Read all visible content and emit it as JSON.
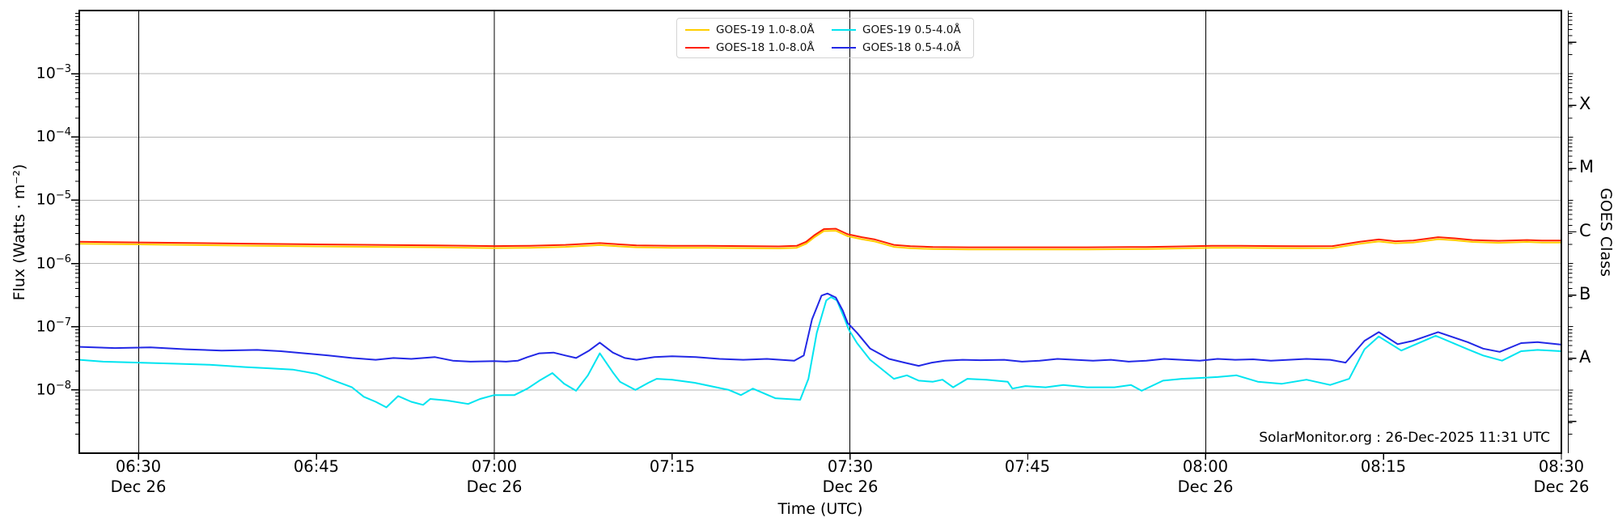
{
  "watermark": "SolarMonitor.org : 26-Dec-2025 11:31 UTC",
  "chart_data": {
    "type": "line",
    "title": "",
    "xlabel": "Time (UTC)",
    "ylabel": "Flux (Watts · m⁻²)",
    "ylabel_right": "GOES Class",
    "x_unit": "minutes after 06:00 UTC on Dec 26",
    "xlim_minutes": [
      25,
      150
    ],
    "ylim": [
      1e-09,
      0.01
    ],
    "grid": {
      "horizontal_decade_gridlines": true,
      "gridline_color": "#b6b6b6"
    },
    "y_tick_exponents": [
      -3,
      -4,
      -5,
      -6,
      -7,
      -8
    ],
    "x_ticks": [
      {
        "minutes": 30,
        "label": "06:30",
        "date": "Dec 26",
        "black_line": true
      },
      {
        "minutes": 45,
        "label": "06:45",
        "date": "",
        "black_line": false
      },
      {
        "minutes": 60,
        "label": "07:00",
        "date": "Dec 26",
        "black_line": true
      },
      {
        "minutes": 75,
        "label": "07:15",
        "date": "",
        "black_line": false
      },
      {
        "minutes": 90,
        "label": "07:30",
        "date": "Dec 26",
        "black_line": true
      },
      {
        "minutes": 105,
        "label": "07:45",
        "date": "",
        "black_line": false
      },
      {
        "minutes": 120,
        "label": "08:00",
        "date": "Dec 26",
        "black_line": true
      },
      {
        "minutes": 135,
        "label": "08:15",
        "date": "",
        "black_line": false
      },
      {
        "minutes": 150,
        "label": "08:30",
        "date": "Dec 26",
        "black_line": false
      }
    ],
    "goes_classes": [
      {
        "label": "X",
        "exponent": -3.5
      },
      {
        "label": "M",
        "exponent": -4.5
      },
      {
        "label": "C",
        "exponent": -5.5
      },
      {
        "label": "B",
        "exponent": -6.5
      },
      {
        "label": "A",
        "exponent": -7.5
      }
    ],
    "legend_position": "top center",
    "series": [
      {
        "name": "GOES-19 1.0-8.0Å",
        "color": "#ffce00",
        "points": [
          [
            25,
            2.05e-06
          ],
          [
            30,
            2e-06
          ],
          [
            35,
            1.95e-06
          ],
          [
            40,
            1.9e-06
          ],
          [
            45,
            1.86e-06
          ],
          [
            50,
            1.83e-06
          ],
          [
            55,
            1.8e-06
          ],
          [
            58,
            1.77e-06
          ],
          [
            60,
            1.75e-06
          ],
          [
            63,
            1.77e-06
          ],
          [
            66,
            1.83e-06
          ],
          [
            68.9,
            1.95e-06
          ],
          [
            70.6,
            1.86e-06
          ],
          [
            72,
            1.8e-06
          ],
          [
            75,
            1.77e-06
          ],
          [
            78,
            1.77e-06
          ],
          [
            81,
            1.75e-06
          ],
          [
            84,
            1.73e-06
          ],
          [
            85.5,
            1.77e-06
          ],
          [
            86.3,
            2.05e-06
          ],
          [
            87,
            2.6e-06
          ],
          [
            87.8,
            3.26e-06
          ],
          [
            88.8,
            3.3e-06
          ],
          [
            89.8,
            2.7e-06
          ],
          [
            91,
            2.42e-06
          ],
          [
            92.1,
            2.23e-06
          ],
          [
            93.7,
            1.83e-06
          ],
          [
            95.1,
            1.74e-06
          ],
          [
            97,
            1.69e-06
          ],
          [
            100,
            1.67e-06
          ],
          [
            105,
            1.67e-06
          ],
          [
            110,
            1.67e-06
          ],
          [
            115,
            1.69e-06
          ],
          [
            118,
            1.73e-06
          ],
          [
            120.5,
            1.77e-06
          ],
          [
            123,
            1.77e-06
          ],
          [
            126,
            1.75e-06
          ],
          [
            128,
            1.74e-06
          ],
          [
            130.7,
            1.75e-06
          ],
          [
            133,
            2.05e-06
          ],
          [
            134.6,
            2.23e-06
          ],
          [
            136,
            2.09e-06
          ],
          [
            137.5,
            2.14e-06
          ],
          [
            139.6,
            2.42e-06
          ],
          [
            141,
            2.33e-06
          ],
          [
            142.5,
            2.19e-06
          ],
          [
            144.7,
            2.12e-06
          ],
          [
            147.1,
            2.19e-06
          ],
          [
            148.4,
            2.14e-06
          ],
          [
            150,
            2.14e-06
          ]
        ]
      },
      {
        "name": "GOES-18 1.0-8.0Å",
        "color": "#ff2000",
        "points": [
          [
            25,
            2.2e-06
          ],
          [
            30,
            2.15e-06
          ],
          [
            35,
            2.1e-06
          ],
          [
            40,
            2.05e-06
          ],
          [
            45,
            2e-06
          ],
          [
            50,
            1.97e-06
          ],
          [
            55,
            1.93e-06
          ],
          [
            58,
            1.9e-06
          ],
          [
            60,
            1.88e-06
          ],
          [
            63,
            1.9e-06
          ],
          [
            66,
            1.97e-06
          ],
          [
            68.9,
            2.1e-06
          ],
          [
            70.6,
            2e-06
          ],
          [
            72,
            1.93e-06
          ],
          [
            75,
            1.9e-06
          ],
          [
            78,
            1.9e-06
          ],
          [
            81,
            1.88e-06
          ],
          [
            84,
            1.86e-06
          ],
          [
            85.5,
            1.9e-06
          ],
          [
            86.3,
            2.2e-06
          ],
          [
            87,
            2.8e-06
          ],
          [
            87.8,
            3.5e-06
          ],
          [
            88.8,
            3.55e-06
          ],
          [
            89.8,
            2.9e-06
          ],
          [
            91,
            2.6e-06
          ],
          [
            92.1,
            2.4e-06
          ],
          [
            93.7,
            1.97e-06
          ],
          [
            95.1,
            1.87e-06
          ],
          [
            97,
            1.82e-06
          ],
          [
            100,
            1.8e-06
          ],
          [
            105,
            1.8e-06
          ],
          [
            110,
            1.8e-06
          ],
          [
            115,
            1.82e-06
          ],
          [
            118,
            1.86e-06
          ],
          [
            120.5,
            1.9e-06
          ],
          [
            123,
            1.9e-06
          ],
          [
            126,
            1.88e-06
          ],
          [
            128,
            1.87e-06
          ],
          [
            130.7,
            1.88e-06
          ],
          [
            133,
            2.2e-06
          ],
          [
            134.6,
            2.4e-06
          ],
          [
            136,
            2.25e-06
          ],
          [
            137.5,
            2.3e-06
          ],
          [
            139.6,
            2.6e-06
          ],
          [
            141,
            2.5e-06
          ],
          [
            142.5,
            2.35e-06
          ],
          [
            144.7,
            2.28e-06
          ],
          [
            147.1,
            2.35e-06
          ],
          [
            148.4,
            2.3e-06
          ],
          [
            150,
            2.3e-06
          ]
        ]
      },
      {
        "name": "GOES-19 0.5-4.0Å",
        "color": "#00e4f0",
        "points": [
          [
            25,
            3e-08
          ],
          [
            27,
            2.8e-08
          ],
          [
            30,
            2.7e-08
          ],
          [
            33,
            2.6e-08
          ],
          [
            36,
            2.5e-08
          ],
          [
            39,
            2.3e-08
          ],
          [
            41,
            2.2e-08
          ],
          [
            43,
            2.1e-08
          ],
          [
            45,
            1.8e-08
          ],
          [
            46.5,
            1.4e-08
          ],
          [
            48,
            1.1e-08
          ],
          [
            49,
            7.8e-09
          ],
          [
            50,
            6.5e-09
          ],
          [
            50.9,
            5.3e-09
          ],
          [
            51.9,
            8e-09
          ],
          [
            53,
            6.5e-09
          ],
          [
            54,
            5.8e-09
          ],
          [
            54.6,
            7.2e-09
          ],
          [
            56,
            6.8e-09
          ],
          [
            57.8,
            6e-09
          ],
          [
            58.8,
            7.2e-09
          ],
          [
            60,
            8.3e-09
          ],
          [
            61.7,
            8.3e-09
          ],
          [
            62.8,
            1.05e-08
          ],
          [
            63.8,
            1.4e-08
          ],
          [
            64.9,
            1.85e-08
          ],
          [
            65.9,
            1.25e-08
          ],
          [
            66.9,
            9.7e-09
          ],
          [
            67.9,
            1.7e-08
          ],
          [
            68.9,
            3.8e-08
          ],
          [
            70,
            1.9e-08
          ],
          [
            70.6,
            1.35e-08
          ],
          [
            71.9,
            1e-08
          ],
          [
            73,
            1.3e-08
          ],
          [
            73.7,
            1.5e-08
          ],
          [
            75,
            1.45e-08
          ],
          [
            76.9,
            1.3e-08
          ],
          [
            79.8,
            1e-08
          ],
          [
            80.8,
            8.3e-09
          ],
          [
            81.8,
            1.05e-08
          ],
          [
            83.7,
            7.4e-09
          ],
          [
            85.8,
            7e-09
          ],
          [
            86.5,
            1.5e-08
          ],
          [
            87.2,
            8e-08
          ],
          [
            88,
            2.6e-07
          ],
          [
            88.4,
            2.95e-07
          ],
          [
            88.9,
            2.6e-07
          ],
          [
            89.5,
            1.4e-07
          ],
          [
            89.9,
            9e-08
          ],
          [
            90.6,
            5.5e-08
          ],
          [
            91.7,
            3e-08
          ],
          [
            93.7,
            1.5e-08
          ],
          [
            94.8,
            1.7e-08
          ],
          [
            95.8,
            1.4e-08
          ],
          [
            97,
            1.35e-08
          ],
          [
            97.8,
            1.45e-08
          ],
          [
            98.7,
            1.1e-08
          ],
          [
            99.9,
            1.5e-08
          ],
          [
            101.5,
            1.45e-08
          ],
          [
            103.3,
            1.35e-08
          ],
          [
            103.7,
            1.05e-08
          ],
          [
            104.8,
            1.15e-08
          ],
          [
            106.5,
            1.1e-08
          ],
          [
            108,
            1.2e-08
          ],
          [
            110,
            1.1e-08
          ],
          [
            112.3,
            1.1e-08
          ],
          [
            113.7,
            1.2e-08
          ],
          [
            114.6,
            9.7e-09
          ],
          [
            116.4,
            1.4e-08
          ],
          [
            118,
            1.5e-08
          ],
          [
            119.6,
            1.55e-08
          ],
          [
            121,
            1.6e-08
          ],
          [
            122.6,
            1.7e-08
          ],
          [
            124.4,
            1.35e-08
          ],
          [
            126.4,
            1.25e-08
          ],
          [
            128.5,
            1.45e-08
          ],
          [
            130.5,
            1.2e-08
          ],
          [
            132.1,
            1.5e-08
          ],
          [
            133.4,
            4.4e-08
          ],
          [
            134.6,
            7e-08
          ],
          [
            136.5,
            4.2e-08
          ],
          [
            139.4,
            7.2e-08
          ],
          [
            142.1,
            4.4e-08
          ],
          [
            143.4,
            3.5e-08
          ],
          [
            145,
            2.9e-08
          ],
          [
            146.6,
            4.1e-08
          ],
          [
            148,
            4.3e-08
          ],
          [
            150,
            4.1e-08
          ]
        ]
      },
      {
        "name": "GOES-18 0.5-4.0Å",
        "color": "#2228e6",
        "points": [
          [
            25,
            4.8e-08
          ],
          [
            28,
            4.6e-08
          ],
          [
            31,
            4.7e-08
          ],
          [
            34,
            4.4e-08
          ],
          [
            37,
            4.2e-08
          ],
          [
            40,
            4.3e-08
          ],
          [
            42,
            4.1e-08
          ],
          [
            44,
            3.8e-08
          ],
          [
            46,
            3.5e-08
          ],
          [
            48,
            3.2e-08
          ],
          [
            50,
            3e-08
          ],
          [
            51.5,
            3.2e-08
          ],
          [
            53,
            3.1e-08
          ],
          [
            55,
            3.3e-08
          ],
          [
            56.5,
            2.9e-08
          ],
          [
            58,
            2.8e-08
          ],
          [
            60,
            2.85e-08
          ],
          [
            61,
            2.8e-08
          ],
          [
            62,
            2.9e-08
          ],
          [
            62.8,
            3.3e-08
          ],
          [
            63.8,
            3.8e-08
          ],
          [
            65,
            3.9e-08
          ],
          [
            66,
            3.5e-08
          ],
          [
            66.9,
            3.2e-08
          ],
          [
            68,
            4.2e-08
          ],
          [
            68.9,
            5.6e-08
          ],
          [
            70,
            3.9e-08
          ],
          [
            71,
            3.2e-08
          ],
          [
            72,
            3e-08
          ],
          [
            73.5,
            3.3e-08
          ],
          [
            75,
            3.4e-08
          ],
          [
            77,
            3.3e-08
          ],
          [
            79,
            3.1e-08
          ],
          [
            81,
            3e-08
          ],
          [
            83,
            3.1e-08
          ],
          [
            85.3,
            2.9e-08
          ],
          [
            86.1,
            3.5e-08
          ],
          [
            86.8,
            1.3e-07
          ],
          [
            87.6,
            3.1e-07
          ],
          [
            88.1,
            3.35e-07
          ],
          [
            88.8,
            2.9e-07
          ],
          [
            89.4,
            1.8e-07
          ],
          [
            89.8,
            1.15e-07
          ],
          [
            90.6,
            8e-08
          ],
          [
            91.7,
            4.5e-08
          ],
          [
            93.3,
            3.1e-08
          ],
          [
            94.6,
            2.7e-08
          ],
          [
            95.8,
            2.4e-08
          ],
          [
            96.9,
            2.7e-08
          ],
          [
            98,
            2.9e-08
          ],
          [
            99.5,
            3e-08
          ],
          [
            101,
            2.95e-08
          ],
          [
            103,
            3e-08
          ],
          [
            104.5,
            2.8e-08
          ],
          [
            106,
            2.9e-08
          ],
          [
            107.5,
            3.1e-08
          ],
          [
            109,
            3e-08
          ],
          [
            110.5,
            2.9e-08
          ],
          [
            112,
            3e-08
          ],
          [
            113.5,
            2.8e-08
          ],
          [
            115,
            2.9e-08
          ],
          [
            116.5,
            3.1e-08
          ],
          [
            118,
            3e-08
          ],
          [
            119.5,
            2.9e-08
          ],
          [
            121,
            3.1e-08
          ],
          [
            122.5,
            3e-08
          ],
          [
            124,
            3.05e-08
          ],
          [
            125.5,
            2.9e-08
          ],
          [
            127,
            3e-08
          ],
          [
            128.5,
            3.1e-08
          ],
          [
            130.5,
            3e-08
          ],
          [
            131.8,
            2.7e-08
          ],
          [
            133.4,
            6e-08
          ],
          [
            134.6,
            8.2e-08
          ],
          [
            136.2,
            5.3e-08
          ],
          [
            137.5,
            6e-08
          ],
          [
            139.6,
            8.2e-08
          ],
          [
            142.1,
            5.7e-08
          ],
          [
            143.4,
            4.5e-08
          ],
          [
            144.8,
            4e-08
          ],
          [
            146.6,
            5.5e-08
          ],
          [
            148,
            5.7e-08
          ],
          [
            150,
            5.2e-08
          ]
        ]
      }
    ]
  }
}
